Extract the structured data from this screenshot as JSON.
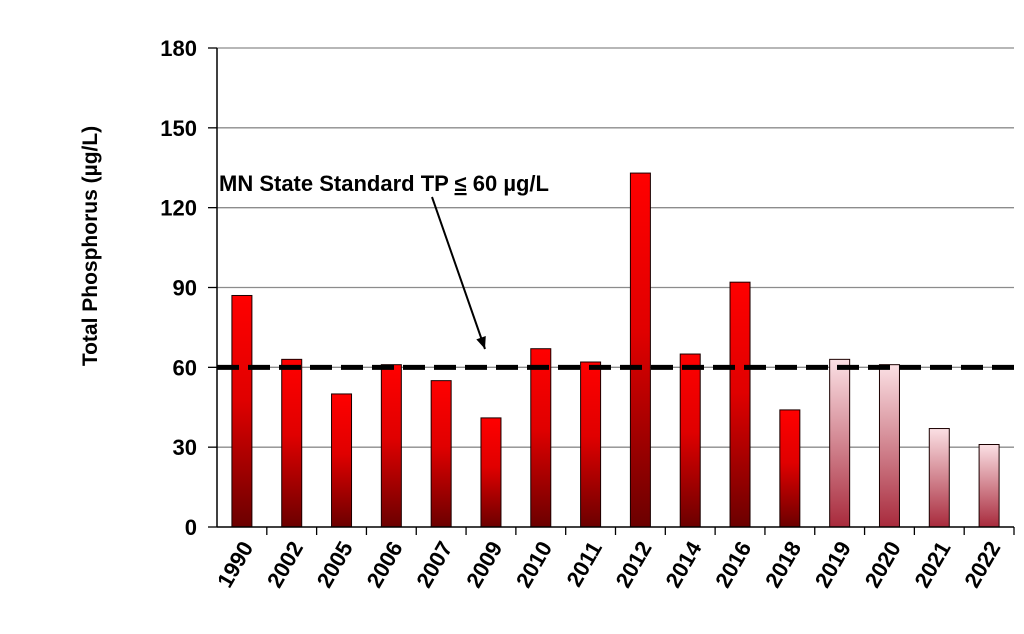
{
  "chart_data": {
    "type": "bar",
    "title": "",
    "xlabel": "",
    "ylabel": "Total Phosphorus  (µg/L)",
    "ylim": [
      0,
      180
    ],
    "yticks": [
      0,
      30,
      60,
      90,
      120,
      150,
      180
    ],
    "grid": true,
    "legend": "none",
    "categories": [
      "1990",
      "2002",
      "2005",
      "2006",
      "2007",
      "2009",
      "2010",
      "2011",
      "2012",
      "2014",
      "2016",
      "2018",
      "2019",
      "2020",
      "2021",
      "2022"
    ],
    "values": [
      87,
      63,
      50,
      61,
      55,
      41,
      67,
      62,
      133,
      65,
      92,
      44,
      63,
      61,
      37,
      31
    ],
    "bar_styles": [
      "dark",
      "dark",
      "dark",
      "dark",
      "dark",
      "dark",
      "dark",
      "dark",
      "dark",
      "dark",
      "dark",
      "dark",
      "light",
      "light",
      "light",
      "light"
    ],
    "reference_line": {
      "value": 60,
      "label_prefix": "MN State Standard TP ",
      "label_symbol": "≤",
      "label_suffix": " 60 µg/L"
    }
  },
  "colors": {
    "dark_top": "#ff0000",
    "dark_bottom": "#6b0000",
    "light_top": "#fbe0e4",
    "light_bottom": "#a82a3c",
    "gridline": "#8c8c8c",
    "reference_line": "#000000"
  }
}
